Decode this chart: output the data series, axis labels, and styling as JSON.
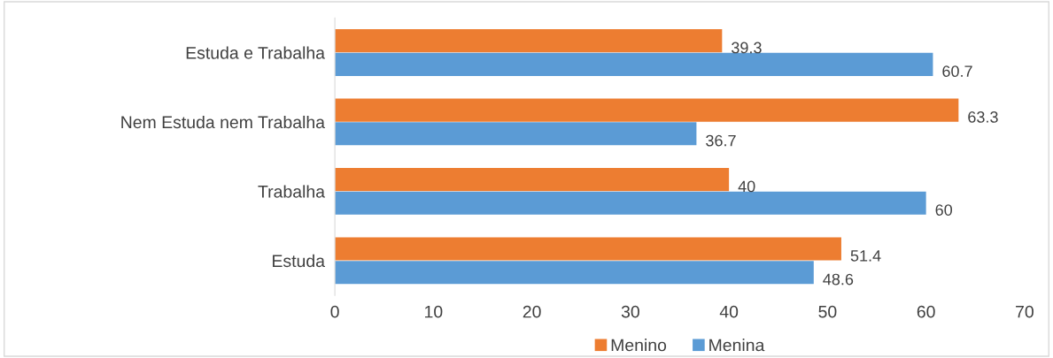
{
  "chart_data": {
    "type": "bar",
    "orientation": "horizontal",
    "categories": [
      "Estuda e Trabalha",
      "Nem Estuda nem Trabalha",
      "Trabalha",
      "Estuda"
    ],
    "series": [
      {
        "name": "Menino",
        "color": "#ed7d31",
        "values": [
          39.3,
          63.3,
          40,
          51.4
        ]
      },
      {
        "name": "Menina",
        "color": "#5b9bd5",
        "values": [
          60.7,
          36.7,
          60,
          48.6
        ]
      }
    ],
    "xlim": [
      0,
      70
    ],
    "xticks": [
      0,
      10,
      20,
      30,
      40,
      50,
      60,
      70
    ],
    "data_labels": true,
    "grid": false,
    "legend": "bottom"
  }
}
